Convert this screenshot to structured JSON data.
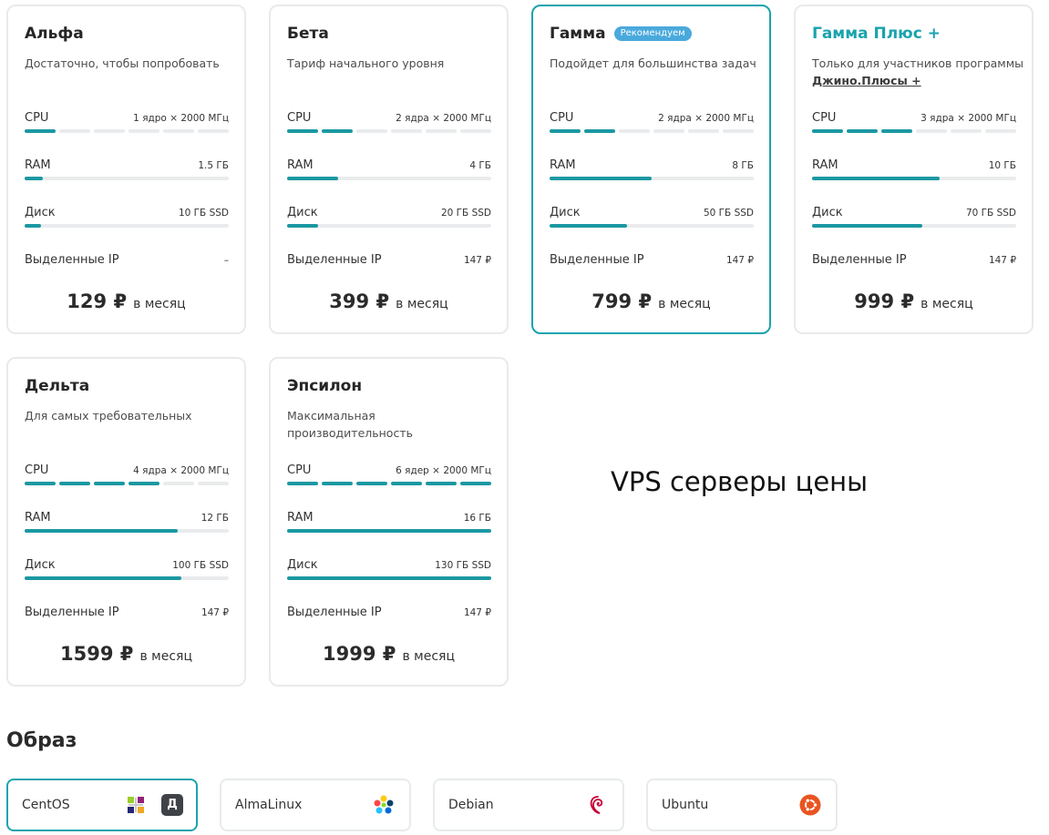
{
  "plans": [
    {
      "name": "Альфа",
      "badge": "",
      "description": "Достаточно, чтобы попробовать",
      "link": "",
      "cpu_label": "CPU",
      "cpu_value": "1 ядро × 2000 МГц",
      "cpu_cores": 1,
      "cpu_max": 6,
      "ram_label": "RAM",
      "ram_value": "1.5 ГБ",
      "ram_fraction": 0.09,
      "disk_label": "Диск",
      "disk_value": "10 ГБ SSD",
      "disk_fraction": 0.08,
      "ip_label": "Выделенные IP",
      "ip_value": "–",
      "price": "129 ₽",
      "period": "в месяц"
    },
    {
      "name": "Бета",
      "badge": "",
      "description": "Тариф начального уровня",
      "link": "",
      "cpu_label": "CPU",
      "cpu_value": "2 ядра × 2000 МГц",
      "cpu_cores": 2,
      "cpu_max": 6,
      "ram_label": "RAM",
      "ram_value": "4 ГБ",
      "ram_fraction": 0.25,
      "disk_label": "Диск",
      "disk_value": "20 ГБ SSD",
      "disk_fraction": 0.15,
      "ip_label": "Выделенные IP",
      "ip_value": "147 ₽",
      "price": "399 ₽",
      "period": "в месяц"
    },
    {
      "name": "Гамма",
      "badge": "Рекомендуем",
      "description": "Подойдет для большинства задач",
      "link": "",
      "cpu_label": "CPU",
      "cpu_value": "2 ядра × 2000 МГц",
      "cpu_cores": 2,
      "cpu_max": 6,
      "ram_label": "RAM",
      "ram_value": "8 ГБ",
      "ram_fraction": 0.5,
      "disk_label": "Диск",
      "disk_value": "50 ГБ SSD",
      "disk_fraction": 0.38,
      "ip_label": "Выделенные IP",
      "ip_value": "147 ₽",
      "price": "799 ₽",
      "period": "в месяц"
    },
    {
      "name": "Гамма Плюс +",
      "badge": "",
      "description": "Только для участников программы",
      "link": "Джино.Плюсы +",
      "cpu_label": "CPU",
      "cpu_value": "3 ядра × 2000 МГц",
      "cpu_cores": 3,
      "cpu_max": 6,
      "ram_label": "RAM",
      "ram_value": "10 ГБ",
      "ram_fraction": 0.625,
      "disk_label": "Диск",
      "disk_value": "70 ГБ SSD",
      "disk_fraction": 0.54,
      "ip_label": "Выделенные IP",
      "ip_value": "147 ₽",
      "price": "999 ₽",
      "period": "в месяц"
    },
    {
      "name": "Дельта",
      "badge": "",
      "description": "Для самых требовательных",
      "link": "",
      "cpu_label": "CPU",
      "cpu_value": "4 ядра × 2000 МГц",
      "cpu_cores": 4,
      "cpu_max": 6,
      "ram_label": "RAM",
      "ram_value": "12 ГБ",
      "ram_fraction": 0.75,
      "disk_label": "Диск",
      "disk_value": "100 ГБ SSD",
      "disk_fraction": 0.77,
      "ip_label": "Выделенные IP",
      "ip_value": "147 ₽",
      "price": "1599 ₽",
      "period": "в месяц"
    },
    {
      "name": "Эпсилон",
      "badge": "",
      "description": "Максимальная производительность",
      "link": "",
      "cpu_label": "CPU",
      "cpu_value": "6 ядер × 2000 МГц",
      "cpu_cores": 6,
      "cpu_max": 6,
      "ram_label": "RAM",
      "ram_value": "16 ГБ",
      "ram_fraction": 1.0,
      "disk_label": "Диск",
      "disk_value": "130 ГБ SSD",
      "disk_fraction": 1.0,
      "ip_label": "Выделенные IP",
      "ip_value": "147 ₽",
      "price": "1999 ₽",
      "period": "в месяц"
    }
  ],
  "selected_plan": "Гамма",
  "caption": "VPS серверы цены",
  "image_section": {
    "title": "Образ",
    "selected": "CentOS",
    "os": [
      {
        "label": "CentOS",
        "icon": "centos-logo-icon",
        "badge": "Д"
      },
      {
        "label": "AlmaLinux",
        "icon": "almalinux-logo-icon",
        "badge": ""
      },
      {
        "label": "Debian",
        "icon": "debian-logo-icon",
        "badge": ""
      },
      {
        "label": "Ubuntu",
        "icon": "ubuntu-logo-icon",
        "badge": ""
      }
    ]
  },
  "colors": {
    "accent": "#1aa3ad",
    "bar_fill": "#1b98a2",
    "bar_track": "#e9ebed",
    "badge": "#4aa9dc",
    "card_border": "#e8eaec"
  }
}
